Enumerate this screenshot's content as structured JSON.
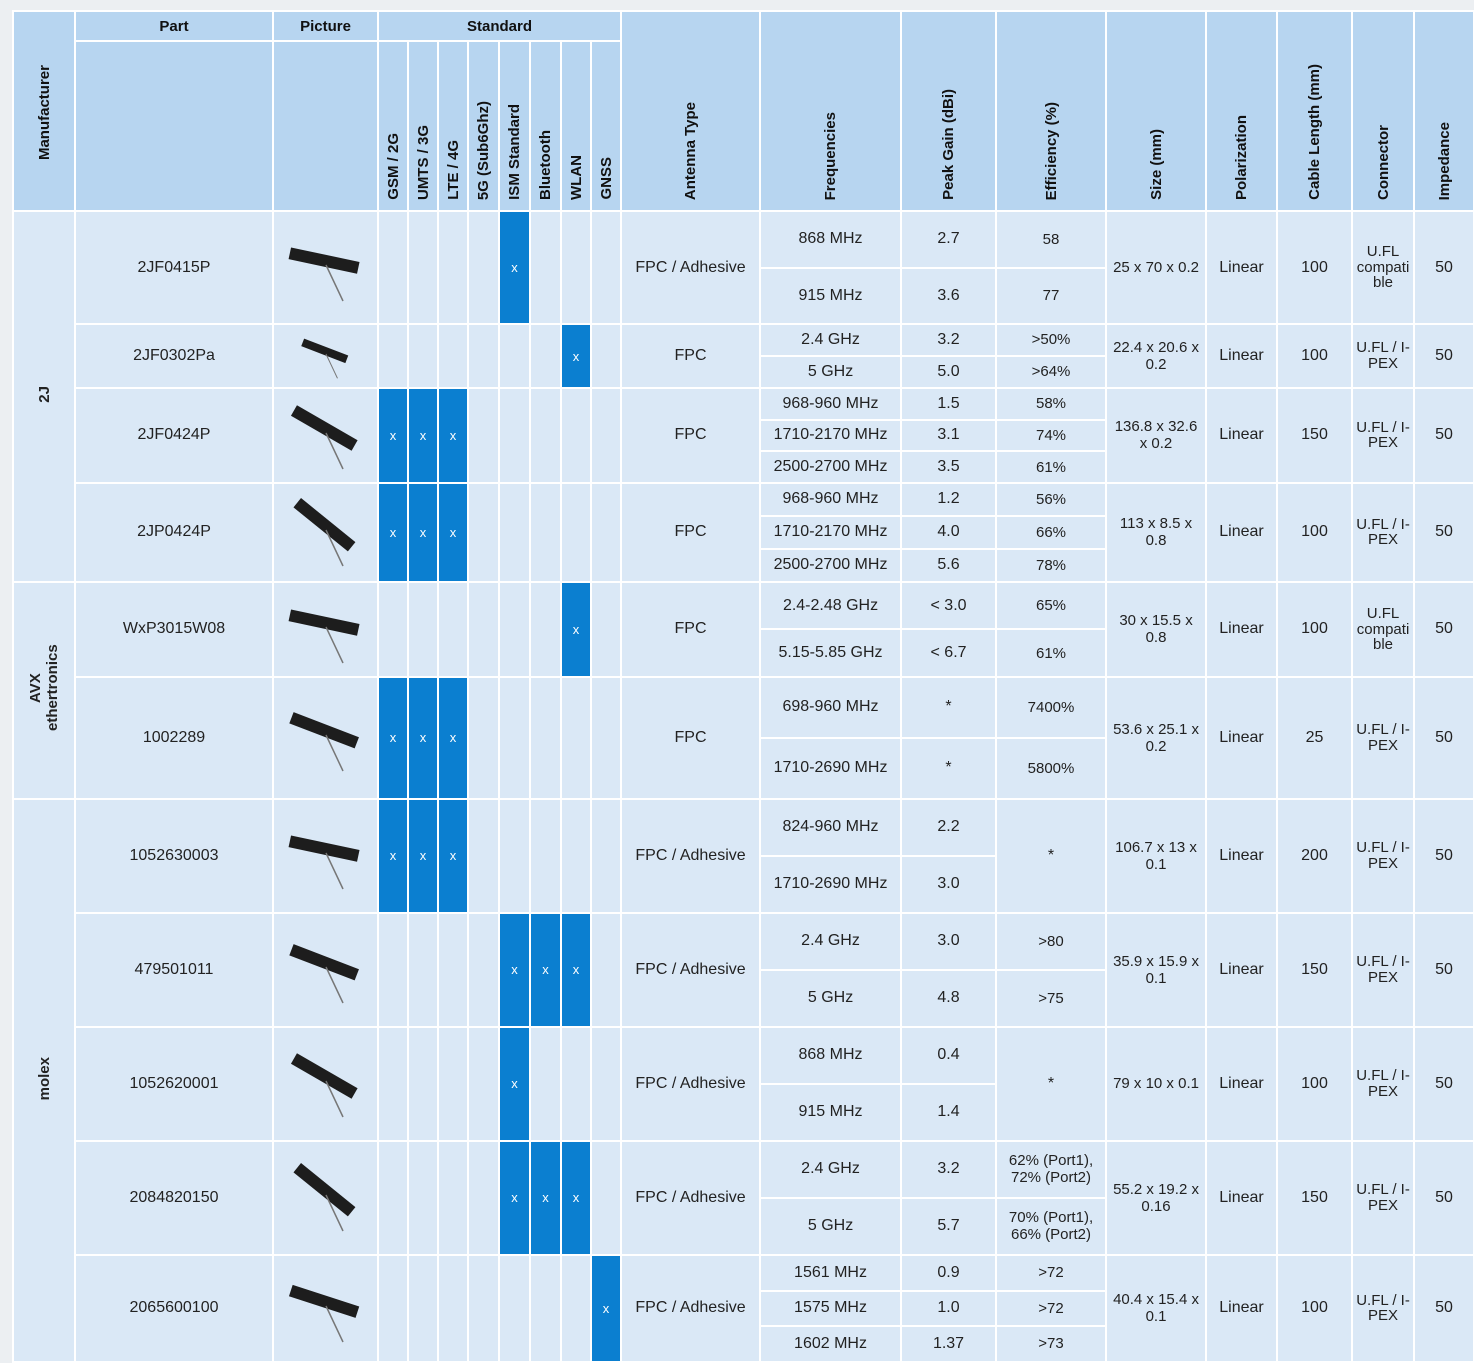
{
  "table": {
    "headers": {
      "manufacturer": "Manufacturer",
      "part": "Part",
      "picture": "Picture",
      "standard": "Standard",
      "standards": [
        "GSM / 2G",
        "UMTS / 3G",
        "LTE / 4G",
        "5G (Sub6Ghz)",
        "ISM Standard",
        "Bluetooth",
        "WLAN",
        "GNSS"
      ],
      "antenna_type": "Antenna Type",
      "frequencies": "Frequencies",
      "peak_gain": "Peak Gain (dBi)",
      "efficiency": "Efficiency (%)",
      "size": "Size (mm)",
      "polarization": "Polarization",
      "cable_length": "Cable Length (mm)",
      "connector": "Connector",
      "impedance": "Impedance"
    },
    "mark": "x",
    "manufacturers": [
      {
        "name": "2J",
        "parts": [
          {
            "part": "2JF0415P",
            "standards": [
              4
            ],
            "antenna_type": "FPC / Adhesive",
            "rows": [
              {
                "frequency": "868 MHz",
                "gain": "2.7",
                "efficiency": "58"
              },
              {
                "frequency": "915 MHz",
                "gain": "3.6",
                "efficiency": "77"
              }
            ],
            "size": "25 x 70 x 0.2",
            "polarization": "Linear",
            "cable_length": "100",
            "connector": "U.FL compatible",
            "impedance": "50"
          },
          {
            "part": "2JF0302Pa",
            "standards": [
              6
            ],
            "antenna_type": "FPC",
            "rows": [
              {
                "frequency": "2.4 GHz",
                "gain": "3.2",
                "efficiency": ">50%"
              },
              {
                "frequency": "5 GHz",
                "gain": "5.0",
                "efficiency": ">64%"
              }
            ],
            "size": "22.4 x 20.6 x 0.2",
            "polarization": "Linear",
            "cable_length": "100",
            "connector": "U.FL / I-PEX",
            "impedance": "50"
          },
          {
            "part": "2JF0424P",
            "standards": [
              0,
              1,
              2
            ],
            "antenna_type": "FPC",
            "rows": [
              {
                "frequency": "968-960 MHz",
                "gain": "1.5",
                "efficiency": "58%"
              },
              {
                "frequency": "1710-2170 MHz",
                "gain": "3.1",
                "efficiency": "74%"
              },
              {
                "frequency": "2500-2700 MHz",
                "gain": "3.5",
                "efficiency": "61%"
              }
            ],
            "size": "136.8 x 32.6 x 0.2",
            "polarization": "Linear",
            "cable_length": "150",
            "connector": "U.FL / I-PEX",
            "impedance": "50"
          },
          {
            "part": "2JP0424P",
            "standards": [
              0,
              1,
              2
            ],
            "antenna_type": "FPC",
            "rows": [
              {
                "frequency": "968-960 MHz",
                "gain": "1.2",
                "efficiency": "56%"
              },
              {
                "frequency": "1710-2170 MHz",
                "gain": "4.0",
                "efficiency": "66%"
              },
              {
                "frequency": "2500-2700 MHz",
                "gain": "5.6",
                "efficiency": "78%"
              }
            ],
            "size": "113 x 8.5 x 0.8",
            "polarization": "Linear",
            "cable_length": "100",
            "connector": "U.FL / I-PEX",
            "impedance": "50"
          }
        ]
      },
      {
        "name": "AVX ethertronics",
        "parts": [
          {
            "part": "WxP3015W08",
            "standards": [
              6
            ],
            "antenna_type": "FPC",
            "rows": [
              {
                "frequency": "2.4-2.48 GHz",
                "gain": "< 3.0",
                "efficiency": "65%"
              },
              {
                "frequency": "5.15-5.85 GHz",
                "gain": "< 6.7",
                "efficiency": "61%"
              }
            ],
            "size": "30 x 15.5 x 0.8",
            "polarization": "Linear",
            "cable_length": "100",
            "connector": "U.FL compatible",
            "impedance": "50"
          },
          {
            "part": "1002289",
            "standards": [
              0,
              1,
              2
            ],
            "antenna_type": "FPC",
            "rows": [
              {
                "frequency": "698-960 MHz",
                "gain": "*",
                "efficiency": "7400%"
              },
              {
                "frequency": "1710-2690 MHz",
                "gain": "*",
                "efficiency": "5800%"
              }
            ],
            "size": "53.6 x 25.1 x 0.2",
            "polarization": "Linear",
            "cable_length": "25",
            "connector": "U.FL / I-PEX",
            "impedance": "50"
          }
        ]
      },
      {
        "name": "molex",
        "parts": [
          {
            "part": "1052630003",
            "standards": [
              0,
              1,
              2
            ],
            "antenna_type": "FPC / Adhesive",
            "rows": [
              {
                "frequency": "824-960 MHz",
                "gain": "2.2"
              },
              {
                "frequency": "1710-2690 MHz",
                "gain": "3.0"
              }
            ],
            "efficiency": "*",
            "size": "106.7 x 13 x 0.1",
            "polarization": "Linear",
            "cable_length": "200",
            "connector": "U.FL / I-PEX",
            "impedance": "50"
          },
          {
            "part": "479501011",
            "standards": [
              4,
              5,
              6
            ],
            "antenna_type": "FPC / Adhesive",
            "rows": [
              {
                "frequency": "2.4 GHz",
                "gain": "3.0",
                "efficiency": ">80"
              },
              {
                "frequency": "5 GHz",
                "gain": "4.8",
                "efficiency": ">75"
              }
            ],
            "size": "35.9 x 15.9 x 0.1",
            "polarization": "Linear",
            "cable_length": "150",
            "connector": "U.FL / I-PEX",
            "impedance": "50"
          },
          {
            "part": "1052620001",
            "standards": [
              4
            ],
            "antenna_type": "FPC / Adhesive",
            "rows": [
              {
                "frequency": "868 MHz",
                "gain": "0.4"
              },
              {
                "frequency": "915 MHz",
                "gain": "1.4"
              }
            ],
            "efficiency": "*",
            "size": "79 x 10 x 0.1",
            "polarization": "Linear",
            "cable_length": "100",
            "connector": "U.FL / I-PEX",
            "impedance": "50"
          },
          {
            "part": "2084820150",
            "standards": [
              4,
              5,
              6
            ],
            "antenna_type": "FPC / Adhesive",
            "rows": [
              {
                "frequency": "2.4 GHz",
                "gain": "3.2",
                "efficiency": "62% (Port1), 72% (Port2)"
              },
              {
                "frequency": "5 GHz",
                "gain": "5.7",
                "efficiency": "70% (Port1), 66% (Port2)"
              }
            ],
            "size": "55.2 x 19.2 x 0.16",
            "polarization": "Linear",
            "cable_length": "150",
            "connector": "U.FL / I-PEX",
            "impedance": "50"
          },
          {
            "part": "2065600100",
            "standards": [
              7
            ],
            "antenna_type": "FPC / Adhesive",
            "rows": [
              {
                "frequency": "1561 MHz",
                "gain": "0.9",
                "efficiency": ">72"
              },
              {
                "frequency": "1575 MHz",
                "gain": "1.0",
                "efficiency": ">72"
              },
              {
                "frequency": "1602 MHz",
                "gain": "1.37",
                "efficiency": ">73"
              }
            ],
            "size": "40.4 x 15.4 x 0.1",
            "polarization": "Linear",
            "cable_length": "100",
            "connector": "U.FL / I-PEX",
            "impedance": "50"
          }
        ]
      }
    ]
  }
}
